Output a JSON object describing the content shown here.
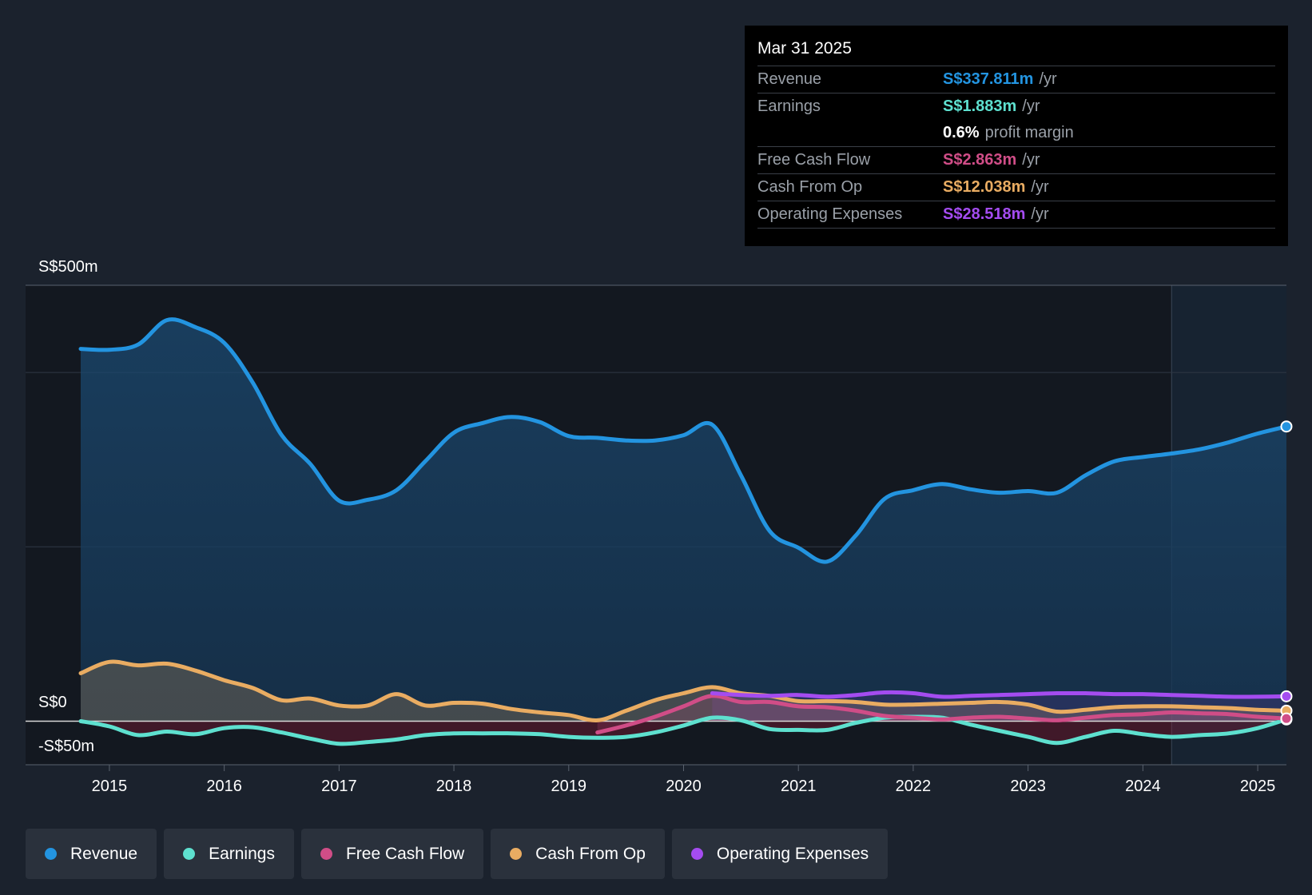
{
  "colors": {
    "revenue": "#2394e0",
    "earnings": "#5ee0cf",
    "free_cash_flow": "#d04d87",
    "cash_from_op": "#e9ac62",
    "operating_expenses": "#a44cf0",
    "background": "#1b222d"
  },
  "tooltip": {
    "date": "Mar 31 2025",
    "rows": [
      {
        "label": "Revenue",
        "value": "S$337.811m",
        "unit": "/yr",
        "color": "#2394e0"
      },
      {
        "label": "Earnings",
        "value": "S$1.883m",
        "unit": "/yr",
        "color": "#5ee0cf"
      },
      {
        "label": "",
        "value": "0.6%",
        "unit": "profit margin",
        "color": "#ffffff"
      },
      {
        "label": "Free Cash Flow",
        "value": "S$2.863m",
        "unit": "/yr",
        "color": "#d04d87"
      },
      {
        "label": "Cash From Op",
        "value": "S$12.038m",
        "unit": "/yr",
        "color": "#e9ac62"
      },
      {
        "label": "Operating Expenses",
        "value": "S$28.518m",
        "unit": "/yr",
        "color": "#a44cf0"
      }
    ]
  },
  "legend": [
    {
      "label": "Revenue",
      "color": "#2394e0"
    },
    {
      "label": "Earnings",
      "color": "#5ee0cf"
    },
    {
      "label": "Free Cash Flow",
      "color": "#d04d87"
    },
    {
      "label": "Cash From Op",
      "color": "#e9ac62"
    },
    {
      "label": "Operating Expenses",
      "color": "#a44cf0"
    }
  ],
  "chart_data": {
    "type": "line",
    "title": "",
    "xlabel": "",
    "ylabel": "",
    "y_tick_labels": {
      "top": "S$500m",
      "zero": "S$0",
      "bottom": "-S$50m"
    },
    "ylim": [
      -50,
      500
    ],
    "xlim": [
      2014.27,
      2025.25
    ],
    "x_ticks": [
      2015,
      2016,
      2017,
      2018,
      2019,
      2020,
      2021,
      2022,
      2023,
      2024,
      2025
    ],
    "x_tick_labels": [
      "2015",
      "2016",
      "2017",
      "2018",
      "2019",
      "2020",
      "2021",
      "2022",
      "2023",
      "2024",
      "2025"
    ],
    "forecast_start": 2024.25,
    "series": [
      {
        "name": "Revenue",
        "key": "revenue",
        "x": [
          2014.75,
          2015.0,
          2015.25,
          2015.5,
          2015.75,
          2016.0,
          2016.25,
          2016.5,
          2016.75,
          2017.0,
          2017.25,
          2017.5,
          2017.75,
          2018.0,
          2018.25,
          2018.5,
          2018.75,
          2019.0,
          2019.25,
          2019.5,
          2019.75,
          2020.0,
          2020.25,
          2020.5,
          2020.75,
          2021.0,
          2021.25,
          2021.5,
          2021.75,
          2022.0,
          2022.25,
          2022.5,
          2022.75,
          2023.0,
          2023.25,
          2023.5,
          2023.75,
          2024.0,
          2024.25,
          2024.5,
          2024.75,
          2025.0,
          2025.25
        ],
        "values": [
          427,
          426,
          432,
          460,
          452,
          434,
          388,
          328,
          295,
          253,
          254,
          265,
          298,
          331,
          342,
          349,
          343,
          327,
          325,
          322,
          322,
          328,
          340,
          282,
          218,
          199,
          183,
          213,
          255,
          265,
          272,
          266,
          262,
          264,
          262,
          282,
          298,
          303,
          307,
          312,
          320,
          330,
          338
        ]
      },
      {
        "name": "Earnings",
        "key": "earnings",
        "x": [
          2014.75,
          2015.0,
          2015.25,
          2015.5,
          2015.75,
          2016.0,
          2016.25,
          2016.5,
          2016.75,
          2017.0,
          2017.25,
          2017.5,
          2017.75,
          2018.0,
          2018.25,
          2018.5,
          2018.75,
          2019.0,
          2019.25,
          2019.5,
          2019.75,
          2020.0,
          2020.25,
          2020.5,
          2020.75,
          2021.0,
          2021.25,
          2021.5,
          2021.75,
          2022.0,
          2022.25,
          2022.5,
          2022.75,
          2023.0,
          2023.25,
          2023.5,
          2023.75,
          2024.0,
          2024.25,
          2024.5,
          2024.75,
          2025.0,
          2025.25
        ],
        "values": [
          0,
          -6,
          -16,
          -12,
          -15,
          -8,
          -7,
          -13,
          -20,
          -26,
          -24,
          -21,
          -16,
          -14,
          -14,
          -14,
          -15,
          -18,
          -19,
          -18,
          -13,
          -5,
          4,
          1,
          -9,
          -10,
          -10,
          -2,
          4,
          5,
          4,
          -4,
          -11,
          -18,
          -25,
          -18,
          -11,
          -15,
          -18,
          -16,
          -14,
          -8,
          2
        ]
      },
      {
        "name": "Free Cash Flow",
        "key": "free_cash_flow",
        "x": [
          2019.25,
          2019.5,
          2019.75,
          2020.0,
          2020.25,
          2020.5,
          2020.75,
          2021.0,
          2021.25,
          2021.5,
          2021.75,
          2022.0,
          2022.25,
          2022.5,
          2022.75,
          2023.0,
          2023.25,
          2023.5,
          2023.75,
          2024.0,
          2024.25,
          2024.5,
          2024.75,
          2025.0,
          2025.25
        ],
        "values": [
          -13,
          -5,
          5,
          17,
          29,
          22,
          22,
          17,
          16,
          12,
          6,
          4,
          2,
          4,
          5,
          3,
          1,
          4,
          7,
          8,
          10,
          9,
          8,
          5,
          3
        ]
      },
      {
        "name": "Cash From Op",
        "key": "cash_from_op",
        "x": [
          2014.75,
          2015.0,
          2015.25,
          2015.5,
          2015.75,
          2016.0,
          2016.25,
          2016.5,
          2016.75,
          2017.0,
          2017.25,
          2017.5,
          2017.75,
          2018.0,
          2018.25,
          2018.5,
          2018.75,
          2019.0,
          2019.25,
          2019.5,
          2019.75,
          2020.0,
          2020.25,
          2020.5,
          2020.75,
          2021.0,
          2021.25,
          2021.5,
          2021.75,
          2022.0,
          2022.25,
          2022.5,
          2022.75,
          2023.0,
          2023.25,
          2023.5,
          2023.75,
          2024.0,
          2024.25,
          2024.5,
          2024.75,
          2025.0,
          2025.25
        ],
        "values": [
          55,
          68,
          64,
          66,
          58,
          47,
          38,
          24,
          26,
          18,
          18,
          31,
          18,
          21,
          20,
          14,
          10,
          7,
          1,
          12,
          24,
          32,
          39,
          32,
          29,
          23,
          23,
          22,
          19,
          19,
          20,
          21,
          22,
          19,
          11,
          13,
          16,
          17,
          17,
          16,
          15,
          13,
          12
        ]
      },
      {
        "name": "Operating Expenses",
        "key": "operating_expenses",
        "x": [
          2020.25,
          2020.5,
          2020.75,
          2021.0,
          2021.25,
          2021.5,
          2021.75,
          2022.0,
          2022.25,
          2022.5,
          2022.75,
          2023.0,
          2023.25,
          2023.5,
          2023.75,
          2024.0,
          2024.25,
          2024.5,
          2024.75,
          2025.0,
          2025.25
        ],
        "values": [
          32,
          30,
          29,
          30,
          28,
          30,
          33,
          32,
          28,
          29,
          30,
          31,
          32,
          32,
          31,
          31,
          30,
          29,
          28,
          28,
          28.5
        ]
      }
    ]
  }
}
